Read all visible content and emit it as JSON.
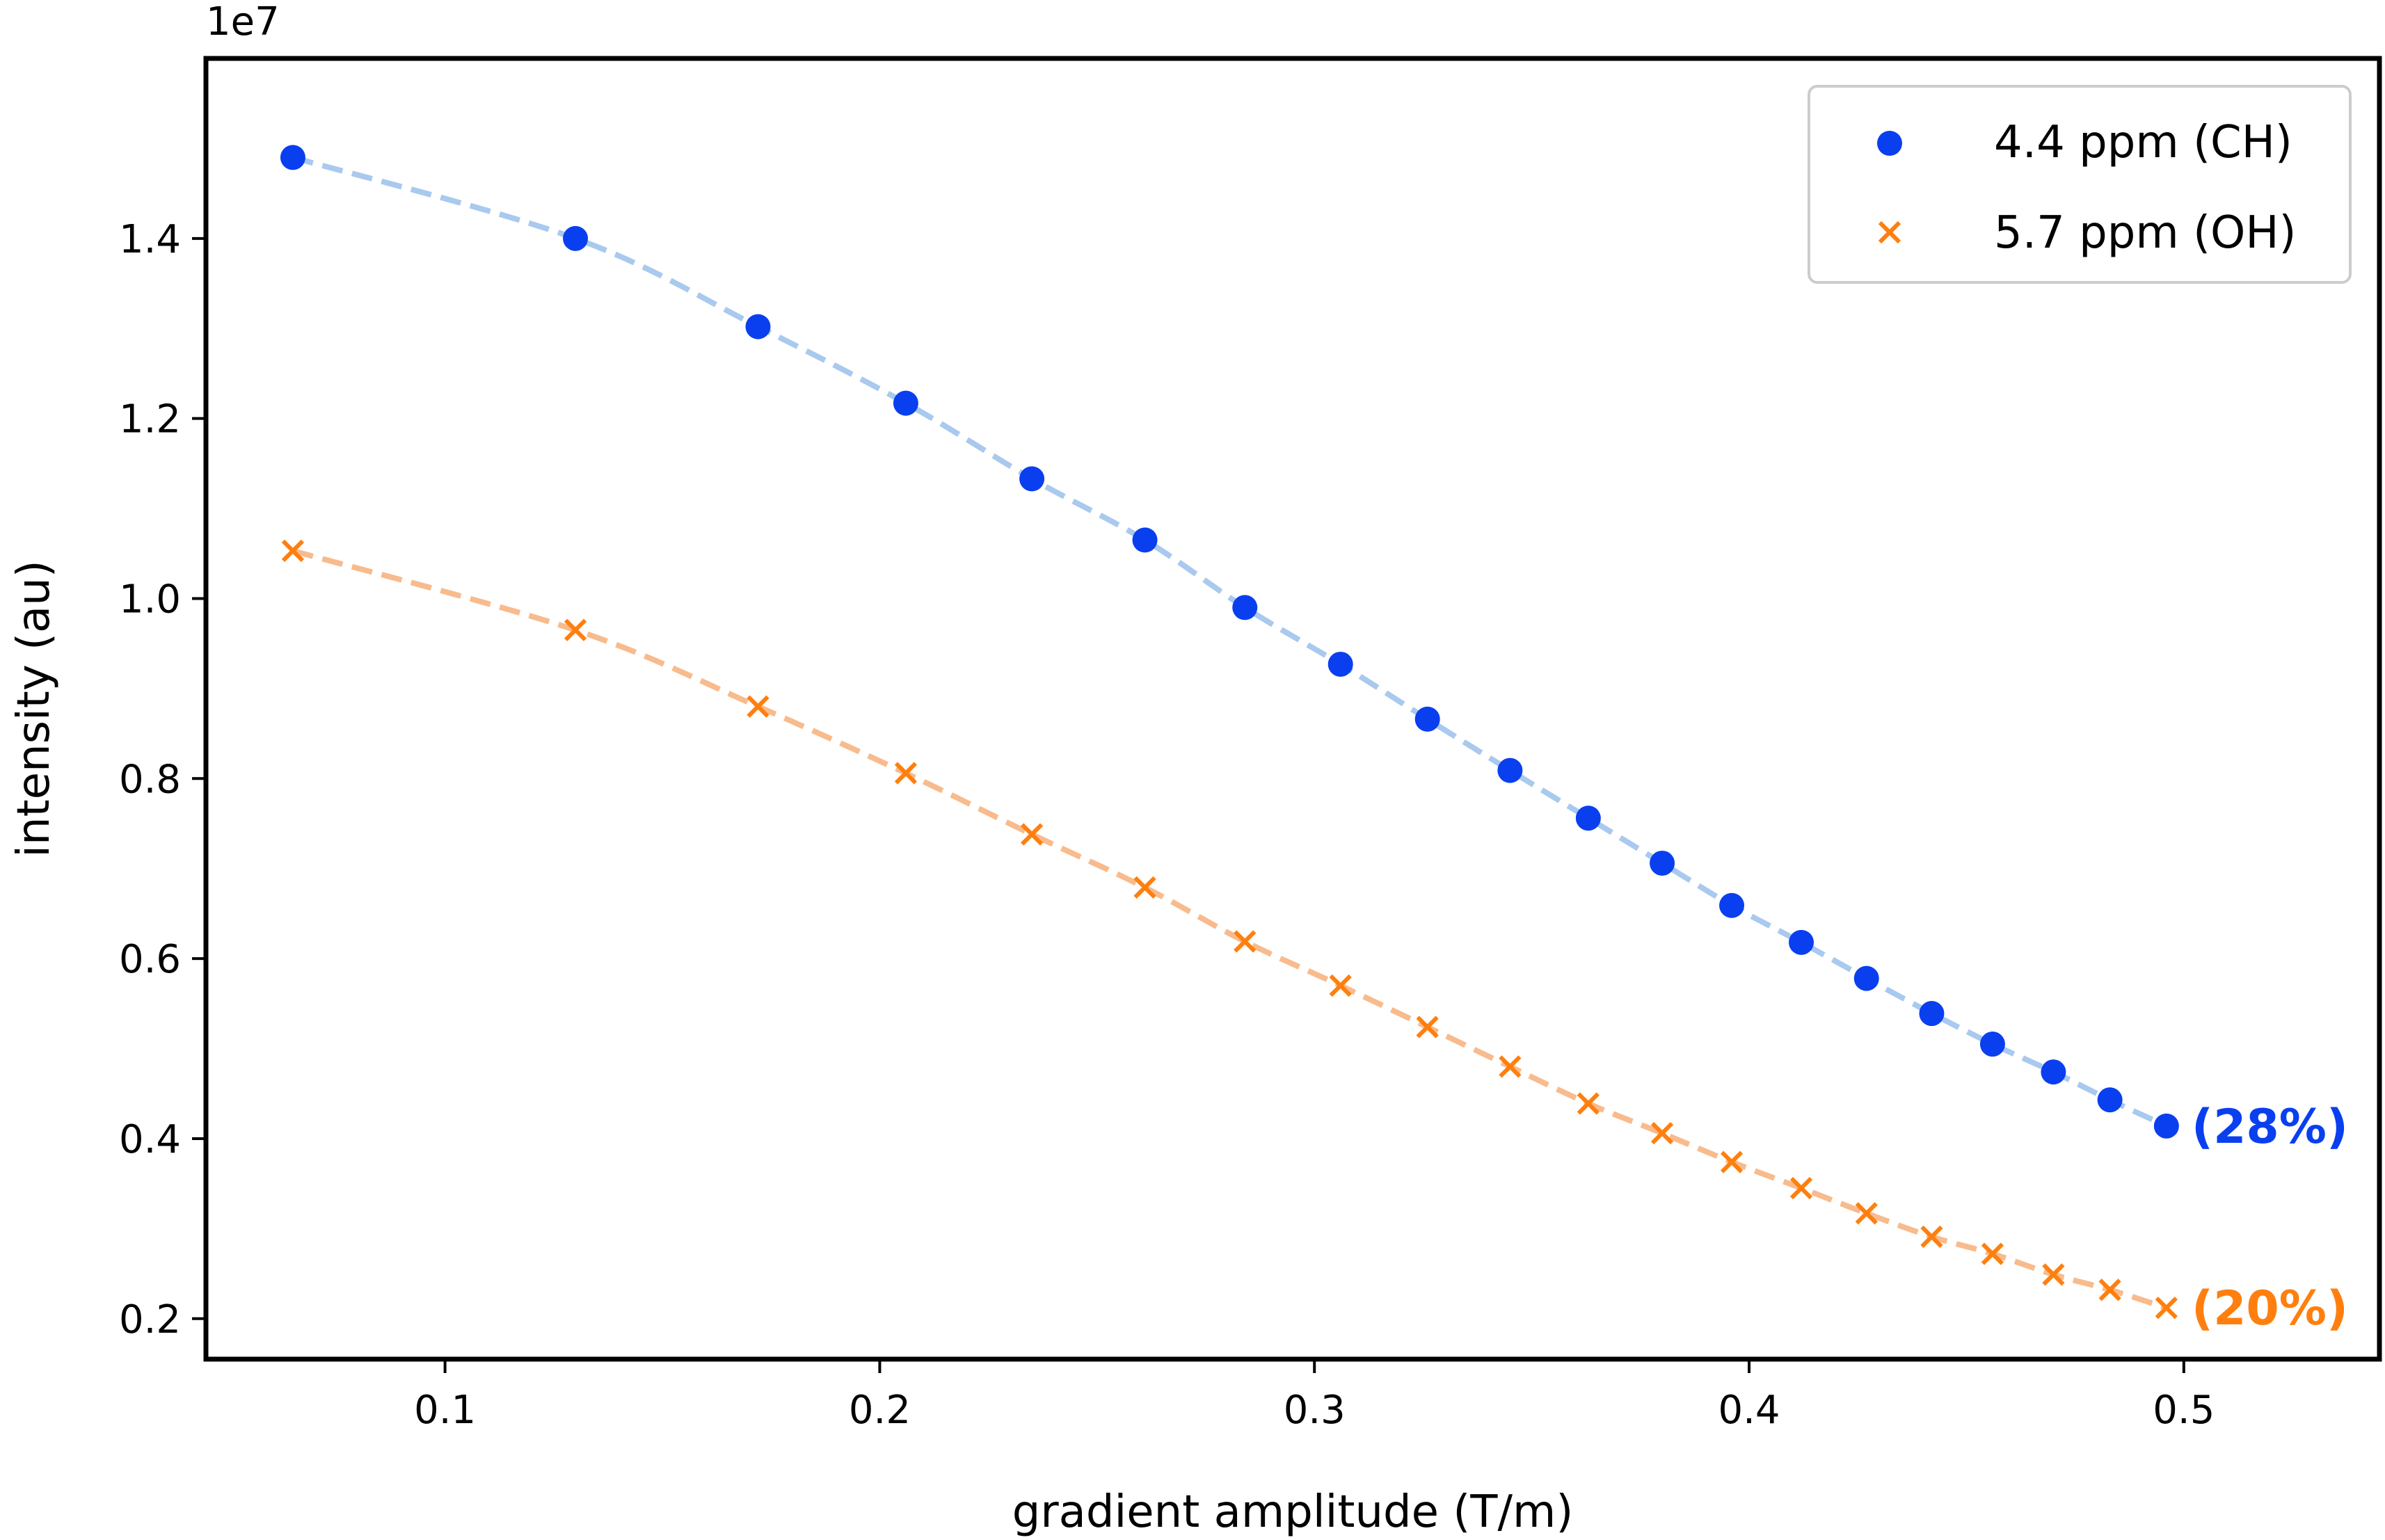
{
  "chart_data": {
    "type": "scatter",
    "xlabel": "gradient amplitude (T/m)",
    "ylabel": "intensity (au)",
    "y_offset_label": "1e7",
    "xlim": [
      0.045,
      0.545
    ],
    "ylim": [
      0.155,
      1.6
    ],
    "xticks": [
      0.1,
      0.2,
      0.3,
      0.4,
      0.5
    ],
    "xtick_labels": [
      "0.1",
      "0.2",
      "0.3",
      "0.4",
      "0.5"
    ],
    "yticks": [
      0.2,
      0.4,
      0.6,
      0.8,
      1.0,
      1.2,
      1.4
    ],
    "ytick_labels": [
      "0.2",
      "0.4",
      "0.6",
      "0.8",
      "1.0",
      "1.2",
      "1.4"
    ],
    "legend_position": "top-right",
    "series": [
      {
        "name": "4.4 ppm (CH)",
        "marker": "circle",
        "color": "#0a3ff0",
        "fit_color": "#a9c9ee",
        "end_label": "(28%)",
        "x": [
          0.065,
          0.13,
          0.172,
          0.206,
          0.235,
          0.261,
          0.284,
          0.306,
          0.326,
          0.345,
          0.363,
          0.38,
          0.396,
          0.412,
          0.427,
          0.442,
          0.456,
          0.47,
          0.483,
          0.496
        ],
        "y": [
          1.49,
          1.4,
          1.302,
          1.217,
          1.133,
          1.065,
          0.99,
          0.927,
          0.866,
          0.809,
          0.756,
          0.706,
          0.659,
          0.618,
          0.578,
          0.539,
          0.505,
          0.474,
          0.443,
          0.414
        ]
      },
      {
        "name": "5.7 ppm (OH)",
        "marker": "x",
        "color": "#ff7f0e",
        "fit_color": "#f8bb8d",
        "end_label": "(20%)",
        "x": [
          0.065,
          0.13,
          0.172,
          0.206,
          0.235,
          0.261,
          0.284,
          0.306,
          0.326,
          0.345,
          0.363,
          0.38,
          0.396,
          0.412,
          0.427,
          0.442,
          0.456,
          0.47,
          0.483,
          0.496
        ],
        "y": [
          1.053,
          0.965,
          0.88,
          0.806,
          0.738,
          0.679,
          0.619,
          0.57,
          0.524,
          0.48,
          0.439,
          0.406,
          0.374,
          0.345,
          0.317,
          0.291,
          0.272,
          0.249,
          0.232,
          0.212
        ]
      }
    ]
  }
}
